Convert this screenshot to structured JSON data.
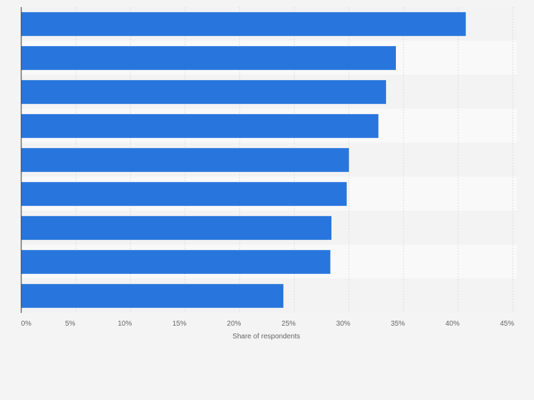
{
  "chart_data": {
    "type": "bar",
    "orientation": "horizontal",
    "categories": [
      "",
      "",
      "",
      "",
      "",
      "",
      "",
      "",
      ""
    ],
    "values": [
      40.7,
      34.3,
      33.4,
      32.7,
      30.0,
      29.8,
      28.4,
      28.3,
      24.0
    ],
    "xlabel": "Share of respondents",
    "xlim": [
      0,
      45
    ],
    "ticks": [
      {
        "value": 0,
        "label": "0%"
      },
      {
        "value": 5,
        "label": "5%"
      },
      {
        "value": 10,
        "label": "10%"
      },
      {
        "value": 15,
        "label": "15%"
      },
      {
        "value": 20,
        "label": "20%"
      },
      {
        "value": 25,
        "label": "25%"
      },
      {
        "value": 30,
        "label": "30%"
      },
      {
        "value": 35,
        "label": "35%"
      },
      {
        "value": 40,
        "label": "40%"
      },
      {
        "value": 45,
        "label": "45%"
      }
    ],
    "grid": true,
    "colors": {
      "bar": "#2876dd",
      "background": "#f4f4f4",
      "band_light": "#f9f9f9",
      "band_dark": "#f3f3f3",
      "grid": "#dddddd",
      "axis": "#333333",
      "text": "#666666"
    }
  }
}
